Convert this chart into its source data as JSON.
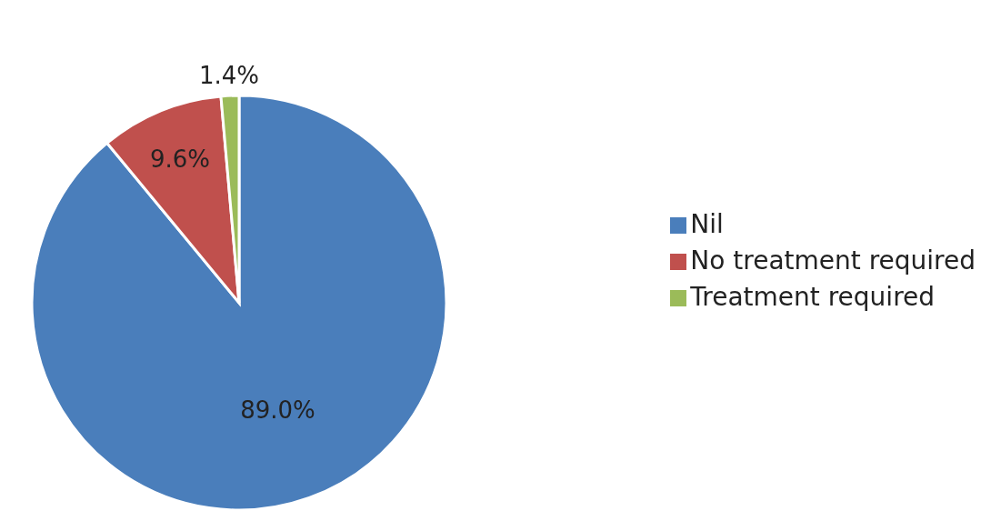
{
  "chart_data": {
    "type": "pie",
    "categories": [
      "Nil",
      "No treatment required",
      "Treatment required"
    ],
    "values": [
      89.0,
      9.6,
      1.4
    ],
    "colors": [
      "#4a7ebb",
      "#c0504d",
      "#9bbb59"
    ],
    "value_labels": [
      "89.0%",
      "9.6%",
      "1.4%"
    ],
    "legend": "right"
  }
}
